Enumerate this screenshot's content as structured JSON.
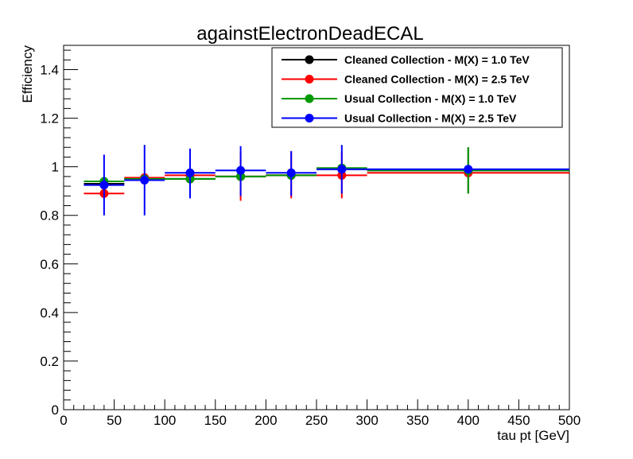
{
  "chart_data": {
    "type": "scatter",
    "title": "againstElectronDeadECAL",
    "xlabel": "tau pt [GeV]",
    "ylabel": "Efficiency",
    "xlim": [
      0,
      500
    ],
    "ylim": [
      0,
      1.5
    ],
    "xticks": [
      0,
      50,
      100,
      150,
      200,
      250,
      300,
      350,
      400,
      450,
      500
    ],
    "xtick_labels": [
      "0",
      "50",
      "100",
      "150",
      "200",
      "250",
      "300",
      "350",
      "400",
      "450",
      "500"
    ],
    "yticks": [
      0,
      0.2,
      0.4,
      0.6,
      0.8,
      1,
      1.2,
      1.4
    ],
    "ytick_labels": [
      "0",
      "0.2",
      "0.4",
      "0.6",
      "0.8",
      "1",
      "1.2",
      "1.4"
    ],
    "grid": false,
    "legend_position": "top-right",
    "series": [
      {
        "name": "Cleaned Collection - M(X) = 1.0 TeV",
        "color": "#000000",
        "points": [
          {
            "x": 40,
            "xlo": 20,
            "xhi": 60,
            "y": 0.93,
            "ylo": 0.93,
            "yhi": 0.93
          },
          {
            "x": 80,
            "xlo": 60,
            "xhi": 100,
            "y": 0.95,
            "ylo": 0.95,
            "yhi": 0.95
          },
          {
            "x": 125,
            "xlo": 100,
            "xhi": 150,
            "y": 0.95,
            "ylo": 0.95,
            "yhi": 0.95
          },
          {
            "x": 175,
            "xlo": 150,
            "xhi": 200,
            "y": 0.96,
            "ylo": 0.96,
            "yhi": 0.96
          },
          {
            "x": 225,
            "xlo": 200,
            "xhi": 250,
            "y": 0.965,
            "ylo": 0.965,
            "yhi": 0.965
          },
          {
            "x": 275,
            "xlo": 250,
            "xhi": 300,
            "y": 0.99,
            "ylo": 0.99,
            "yhi": 0.99
          },
          {
            "x": 400,
            "xlo": 300,
            "xhi": 500,
            "y": 0.985,
            "ylo": 0.89,
            "yhi": 1.08
          }
        ]
      },
      {
        "name": "Cleaned Collection - M(X) = 2.5 TeV",
        "color": "#ff0000",
        "points": [
          {
            "x": 40,
            "xlo": 20,
            "xhi": 60,
            "y": 0.89,
            "ylo": 0.89,
            "yhi": 0.89
          },
          {
            "x": 80,
            "xlo": 60,
            "xhi": 100,
            "y": 0.955,
            "ylo": 0.955,
            "yhi": 0.955
          },
          {
            "x": 125,
            "xlo": 100,
            "xhi": 150,
            "y": 0.965,
            "ylo": 0.965,
            "yhi": 0.965
          },
          {
            "x": 175,
            "xlo": 150,
            "xhi": 200,
            "y": 0.96,
            "ylo": 0.86,
            "yhi": 1.06
          },
          {
            "x": 225,
            "xlo": 200,
            "xhi": 250,
            "y": 0.965,
            "ylo": 0.87,
            "yhi": 1.06
          },
          {
            "x": 275,
            "xlo": 250,
            "xhi": 300,
            "y": 0.965,
            "ylo": 0.87,
            "yhi": 1.06
          },
          {
            "x": 400,
            "xlo": 300,
            "xhi": 500,
            "y": 0.975,
            "ylo": 0.975,
            "yhi": 0.975
          }
        ]
      },
      {
        "name": "Usual Collection - M(X) = 1.0 TeV",
        "color": "#009900",
        "points": [
          {
            "x": 40,
            "xlo": 20,
            "xhi": 60,
            "y": 0.94,
            "ylo": 0.94,
            "yhi": 0.94
          },
          {
            "x": 80,
            "xlo": 60,
            "xhi": 100,
            "y": 0.95,
            "ylo": 0.95,
            "yhi": 0.95
          },
          {
            "x": 125,
            "xlo": 100,
            "xhi": 150,
            "y": 0.95,
            "ylo": 0.95,
            "yhi": 0.95
          },
          {
            "x": 175,
            "xlo": 150,
            "xhi": 200,
            "y": 0.96,
            "ylo": 0.96,
            "yhi": 0.96
          },
          {
            "x": 225,
            "xlo": 200,
            "xhi": 250,
            "y": 0.965,
            "ylo": 0.965,
            "yhi": 0.965
          },
          {
            "x": 275,
            "xlo": 250,
            "xhi": 300,
            "y": 0.995,
            "ylo": 0.995,
            "yhi": 0.995
          },
          {
            "x": 400,
            "xlo": 300,
            "xhi": 500,
            "y": 0.985,
            "ylo": 0.89,
            "yhi": 1.08
          }
        ]
      },
      {
        "name": "Usual Collection - M(X) = 2.5 TeV",
        "color": "#0000ff",
        "points": [
          {
            "x": 40,
            "xlo": 20,
            "xhi": 60,
            "y": 0.925,
            "ylo": 0.8,
            "yhi": 1.05
          },
          {
            "x": 80,
            "xlo": 60,
            "xhi": 100,
            "y": 0.945,
            "ylo": 0.8,
            "yhi": 1.09
          },
          {
            "x": 125,
            "xlo": 100,
            "xhi": 150,
            "y": 0.975,
            "ylo": 0.87,
            "yhi": 1.075
          },
          {
            "x": 175,
            "xlo": 150,
            "xhi": 200,
            "y": 0.985,
            "ylo": 0.88,
            "yhi": 1.085
          },
          {
            "x": 225,
            "xlo": 200,
            "xhi": 250,
            "y": 0.975,
            "ylo": 0.88,
            "yhi": 1.065
          },
          {
            "x": 275,
            "xlo": 250,
            "xhi": 300,
            "y": 0.99,
            "ylo": 0.89,
            "yhi": 1.09
          },
          {
            "x": 400,
            "xlo": 300,
            "xhi": 500,
            "y": 0.99,
            "ylo": 0.99,
            "yhi": 0.99
          }
        ]
      }
    ]
  }
}
